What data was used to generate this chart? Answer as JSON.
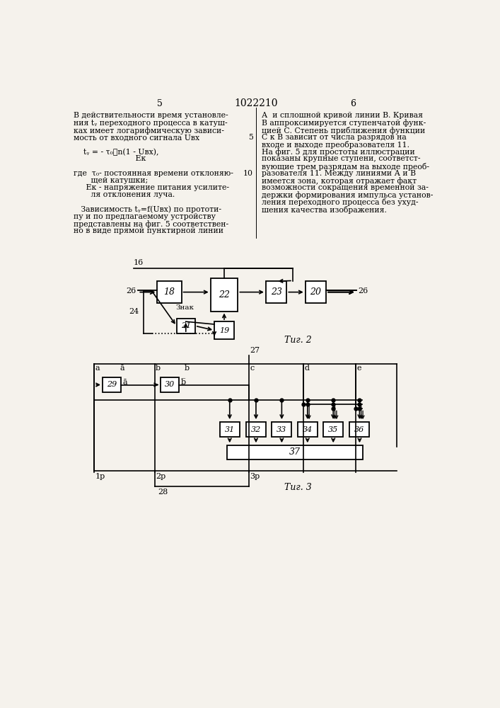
{
  "page_num_left": "5",
  "page_num_center": "1022210",
  "page_num_right": "6",
  "bg_color": "#f5f2ec",
  "fig2_caption": "Τиг. 2",
  "fig3_caption": "Τиг. 3",
  "left_text": [
    "В действительности время установле-",
    "ния tᵧ переходного процесса в катуш-",
    "ках имеет логарифмическую зависи-",
    "мость от входного сигнала Uвх",
    "",
    "    tᵧ = - τ₀ℓn(1 - Uвх),",
    "                         Eк",
    "",
    "где  τ₀- постоянная времени отклоняю-",
    "       щей катушки;",
    "     Eк - напряжение питания усилите-",
    "       ля отклонения луча.",
    "",
    "   Зависимость tᵧ=f(Uвх) по прототи-",
    "пу и по предлагаемому устройству",
    "представлены на фиг. 5 соответствен-",
    "но в виде прямой пунктирной линии"
  ],
  "right_text": [
    "А  и сплошной кривой линии В. Кривая",
    "В аппроксимируется ступенчатой функ-",
    "цией С. Степень приближения функции",
    "С к В зависит от числа разрядов на",
    "входе и выходе преобразователя 11.",
    "На фиг. 5 для простоты иллюстрации",
    "показаны крупные ступени, соответст-",
    "вующие трем разрядам на выходе преоб-",
    "разователя 11. Между линиями А и В",
    "имеется зона, которая отражает факт",
    "возможности сокращения временной за-",
    "держки формирования импульса установ-",
    "ления переходного процесса без ухуд-",
    "шения качества изображения."
  ],
  "line_numbers": {
    "3": "5",
    "8": "10"
  }
}
